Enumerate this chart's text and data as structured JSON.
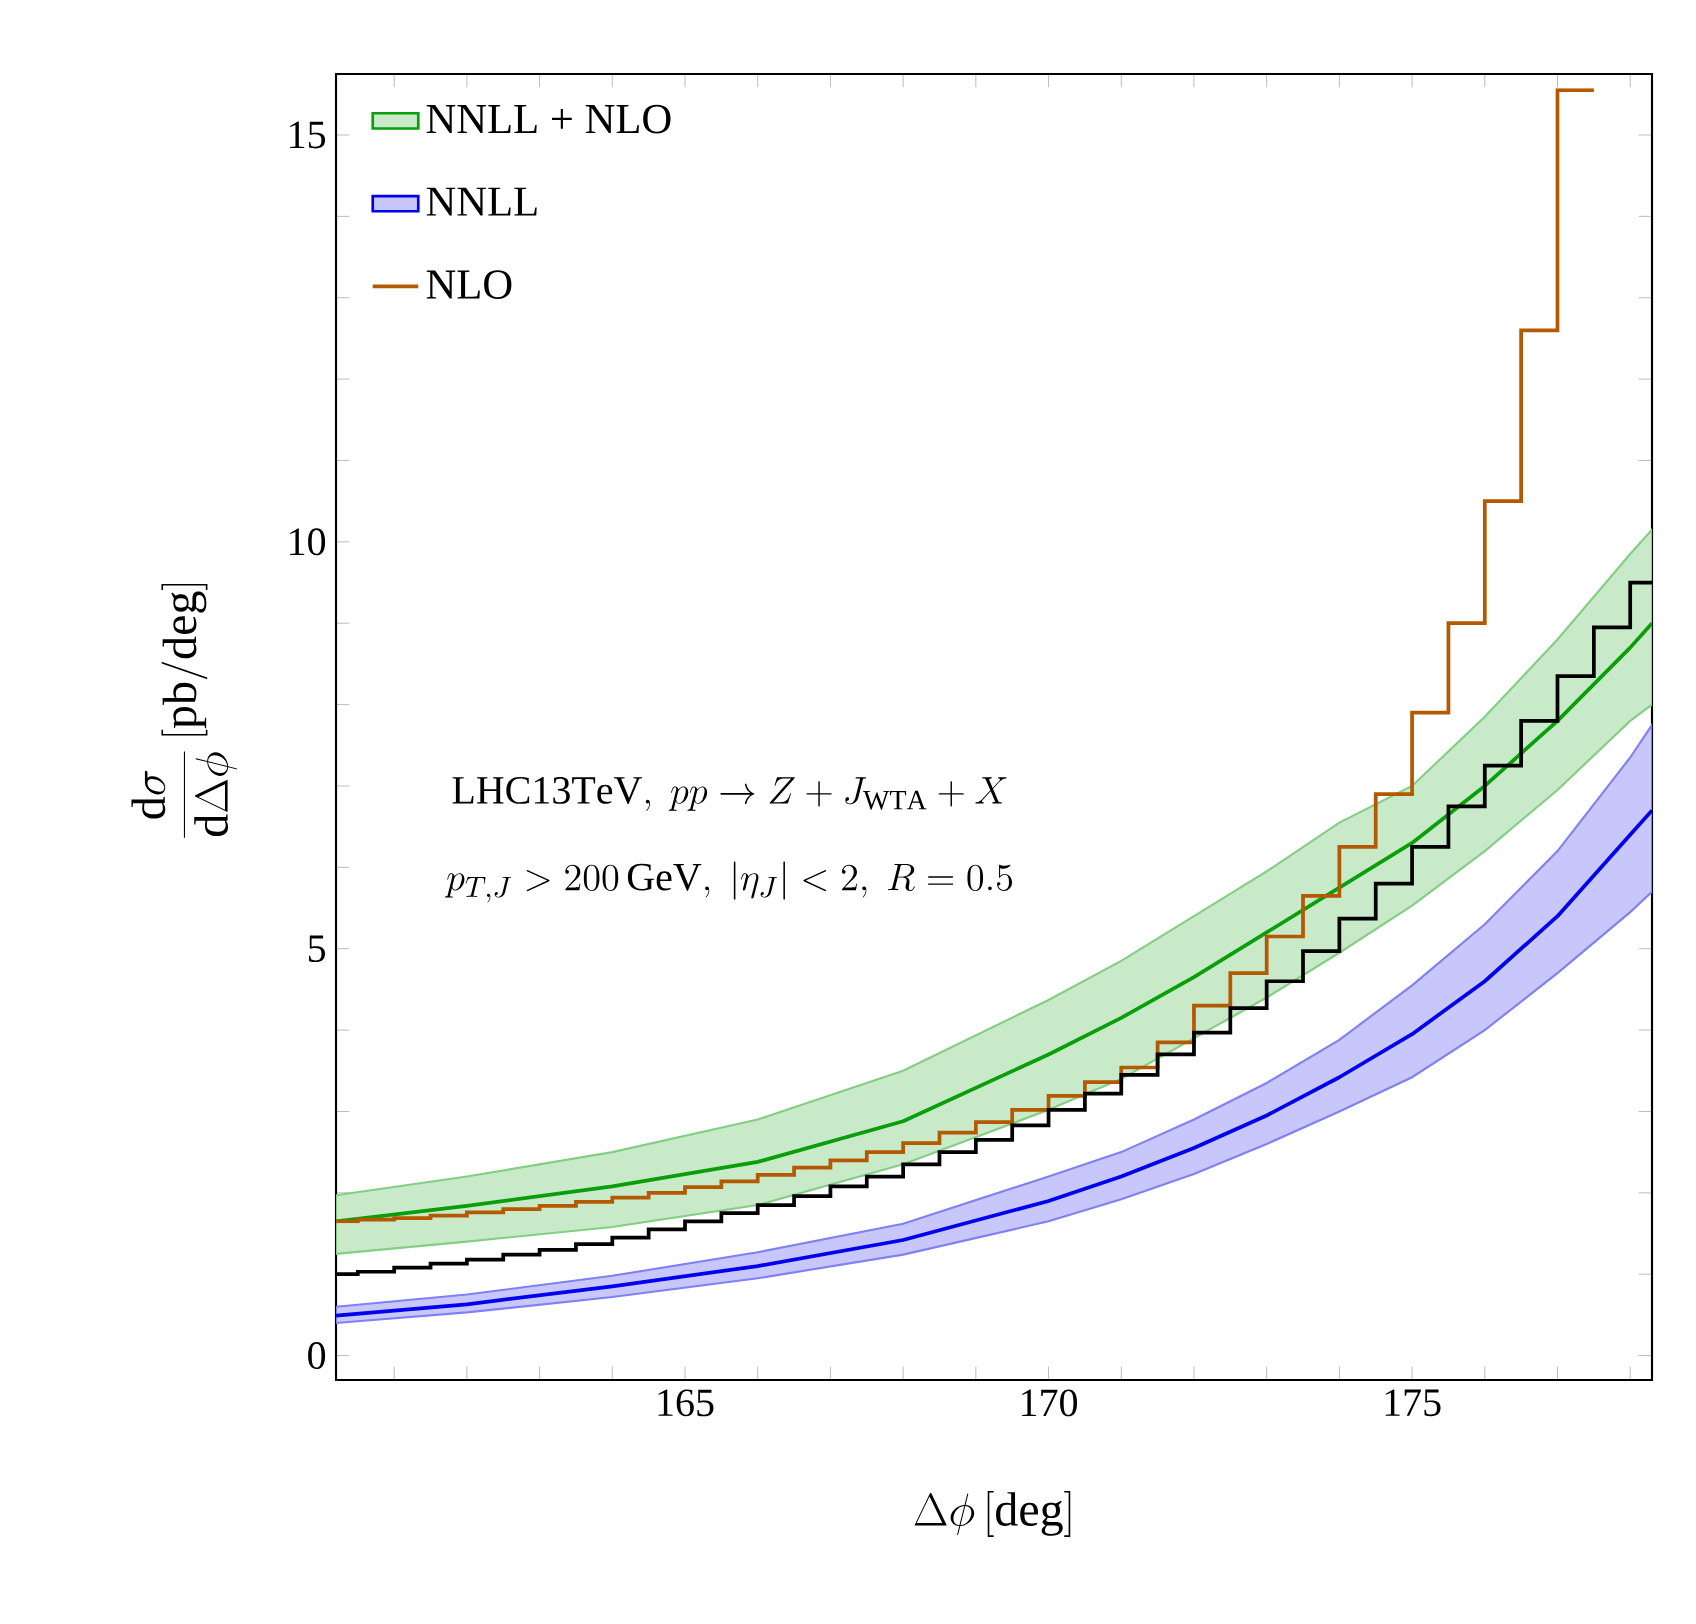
{
  "chart_data": {
    "type": "line",
    "xlabel": "\\Delta\\phi\\,[\\mathrm{deg}]",
    "ylabel": "\\frac{\\mathrm{d}\\sigma}{\\mathrm{d}\\Delta\\phi}\\,[\\mathrm{pb/deg}]",
    "annotations": [
      "\\mathrm{LHC13TeV},\\; pp\\to Z+J_{\\mathrm{WTA}}+X",
      "p_{T,J}>200\\,\\mathrm{GeV},\\; |\\eta_J|<2,\\; R=0.5"
    ],
    "xlim": [
      160.2,
      178.3
    ],
    "ylim": [
      -0.3,
      15.75
    ],
    "xticks": [
      {
        "value": 161,
        "label": null
      },
      {
        "value": 162,
        "label": null
      },
      {
        "value": 163,
        "label": null
      },
      {
        "value": 164,
        "label": null
      },
      165,
      {
        "value": 166,
        "label": null
      },
      {
        "value": 167,
        "label": null
      },
      {
        "value": 168,
        "label": null
      },
      {
        "value": 169,
        "label": null
      },
      170,
      {
        "value": 171,
        "label": null
      },
      {
        "value": 172,
        "label": null
      },
      {
        "value": 173,
        "label": null
      },
      {
        "value": 174,
        "label": null
      },
      175,
      {
        "value": 176,
        "label": null
      },
      {
        "value": 177,
        "label": null
      },
      {
        "value": 178,
        "label": null
      }
    ],
    "yticks": [
      0,
      {
        "value": 1,
        "label": null
      },
      {
        "value": 2,
        "label": null
      },
      {
        "value": 3,
        "label": null
      },
      {
        "value": 4,
        "label": null
      },
      5,
      {
        "value": 6,
        "label": null
      },
      {
        "value": 7,
        "label": null
      },
      {
        "value": 8,
        "label": null
      },
      {
        "value": 9,
        "label": null
      },
      10,
      {
        "value": 11,
        "label": null
      },
      {
        "value": 12,
        "label": null
      },
      {
        "value": 13,
        "label": null
      },
      {
        "value": 14,
        "label": null
      },
      15
    ],
    "legend": "top left",
    "series": [
      {
        "name": "NNLL + NLO",
        "type": "line",
        "color": "#0a9e0a",
        "x": [
          160.2,
          162,
          164,
          166,
          168,
          170,
          171,
          172,
          173,
          174,
          175,
          176,
          177,
          178,
          178.3
        ],
        "values": [
          1.65,
          1.84,
          2.08,
          2.38,
          2.88,
          3.7,
          4.15,
          4.65,
          5.2,
          5.75,
          6.3,
          7.0,
          7.8,
          8.7,
          9.0
        ],
        "lower": [
          1.25,
          1.4,
          1.58,
          1.85,
          2.35,
          3.02,
          3.4,
          3.9,
          4.4,
          4.95,
          5.53,
          6.2,
          6.95,
          7.8,
          8.0
        ],
        "upper": [
          1.97,
          2.2,
          2.5,
          2.9,
          3.5,
          4.37,
          4.85,
          5.4,
          5.95,
          6.55,
          7.0,
          7.85,
          8.8,
          9.85,
          10.15
        ]
      },
      {
        "name": "NNLL",
        "type": "line",
        "color": "#0000ee",
        "x": [
          160.2,
          162,
          164,
          166,
          168,
          170,
          171,
          172,
          173,
          174,
          175,
          176,
          177,
          178,
          178.3
        ],
        "values": [
          0.49,
          0.63,
          0.85,
          1.1,
          1.42,
          1.9,
          2.2,
          2.55,
          2.95,
          3.42,
          3.95,
          4.6,
          5.4,
          6.4,
          6.7
        ],
        "lower": [
          0.4,
          0.53,
          0.72,
          0.95,
          1.24,
          1.65,
          1.92,
          2.23,
          2.6,
          3.0,
          3.42,
          4.0,
          4.7,
          5.45,
          5.7
        ],
        "upper": [
          0.6,
          0.75,
          0.98,
          1.27,
          1.62,
          2.2,
          2.5,
          2.9,
          3.35,
          3.88,
          4.55,
          5.3,
          6.2,
          7.35,
          7.75
        ]
      },
      {
        "name": "NLO",
        "type": "step",
        "color": "#b35900",
        "x": [
          160.2,
          160.5,
          161,
          161.5,
          162,
          162.5,
          163,
          163.5,
          164,
          164.5,
          165,
          165.5,
          166,
          166.5,
          167,
          167.5,
          168,
          168.5,
          169,
          169.5,
          170,
          170.5,
          171,
          171.5,
          172,
          172.5,
          173,
          173.5,
          174,
          174.5,
          175,
          175.5,
          176,
          176.5,
          177,
          177.5
        ],
        "values": [
          1.65,
          1.67,
          1.69,
          1.72,
          1.76,
          1.8,
          1.84,
          1.89,
          1.94,
          2.0,
          2.07,
          2.14,
          2.22,
          2.31,
          2.4,
          2.5,
          2.61,
          2.74,
          2.87,
          3.02,
          3.19,
          3.36,
          3.54,
          3.85,
          4.3,
          4.7,
          5.15,
          5.65,
          6.25,
          6.9,
          7.9,
          9.0,
          10.5,
          12.6,
          15.55,
          15.55
        ]
      },
      {
        "type": "step",
        "color": "#000000",
        "x": [
          160.2,
          160.5,
          161,
          161.5,
          162,
          162.5,
          163,
          163.5,
          164,
          164.5,
          165,
          165.5,
          166,
          166.5,
          167,
          167.5,
          168,
          168.5,
          169,
          169.5,
          170,
          170.5,
          171,
          171.5,
          172,
          172.5,
          173,
          173.5,
          174,
          174.5,
          175,
          175.5,
          176,
          176.5,
          177,
          177.5,
          178,
          178.3
        ],
        "values": [
          1.0,
          1.03,
          1.08,
          1.13,
          1.18,
          1.24,
          1.3,
          1.37,
          1.45,
          1.55,
          1.65,
          1.75,
          1.85,
          1.96,
          2.08,
          2.2,
          2.35,
          2.5,
          2.65,
          2.83,
          3.02,
          3.22,
          3.45,
          3.7,
          3.97,
          4.27,
          4.6,
          4.97,
          5.37,
          5.8,
          6.25,
          6.75,
          7.25,
          7.8,
          8.35,
          8.95,
          9.5,
          9.5
        ]
      }
    ]
  }
}
